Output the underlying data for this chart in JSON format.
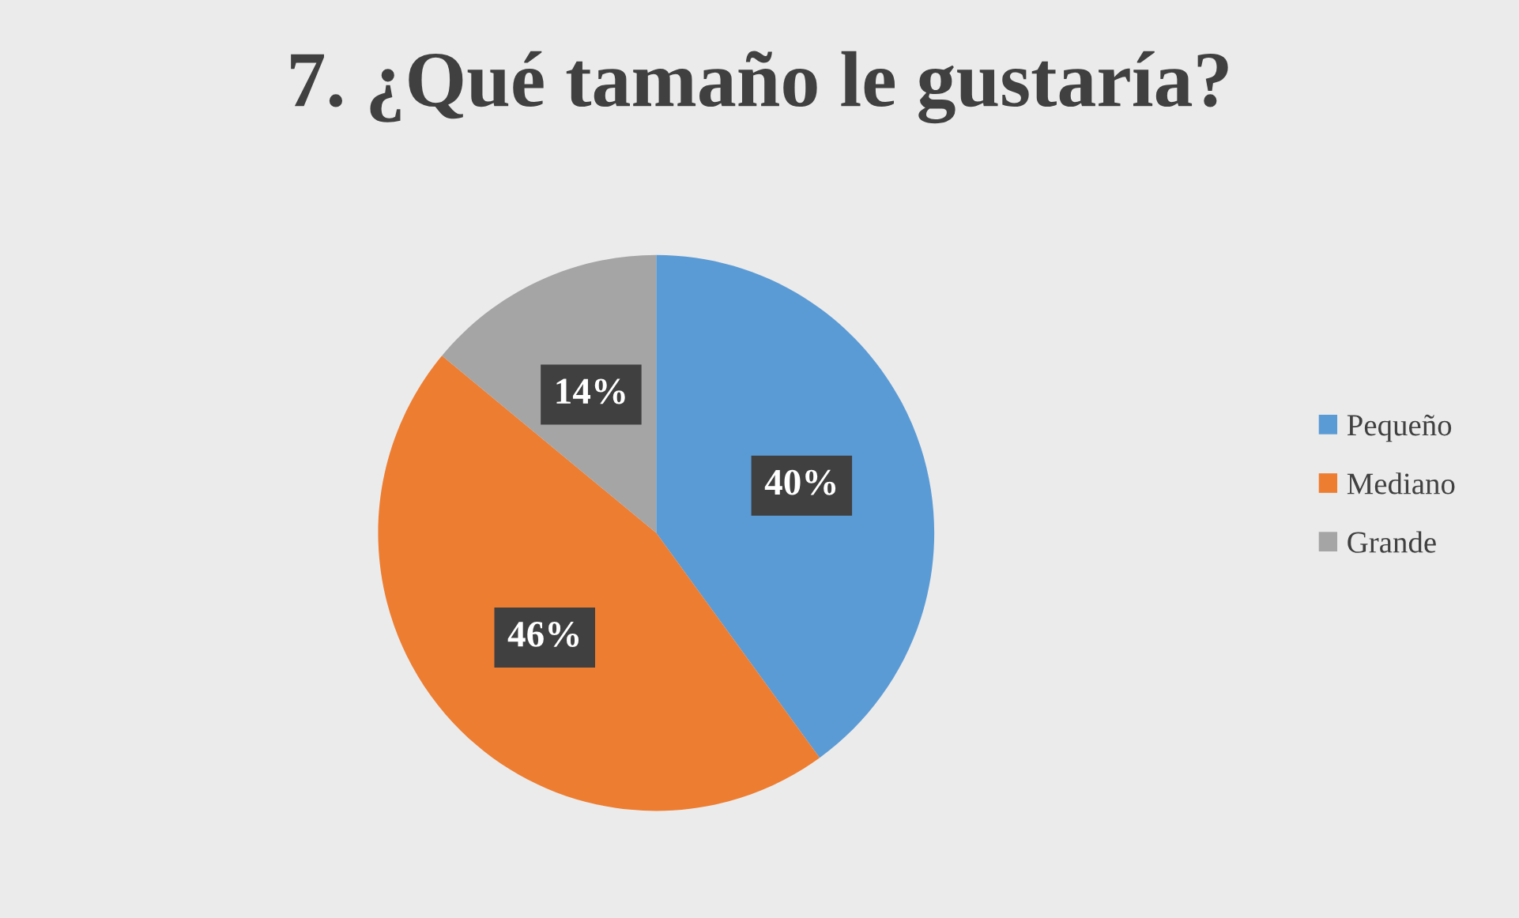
{
  "chart_data": {
    "type": "pie",
    "title": "7. ¿Qué tamaño le gustaría?",
    "categories": [
      "Pequeño",
      "Mediano",
      "Grande"
    ],
    "values": [
      40,
      46,
      14
    ],
    "value_labels": [
      "40%",
      "46%",
      "14%"
    ],
    "colors": [
      "#5b9bd5",
      "#ed7d31",
      "#a5a5a5"
    ],
    "legend": "right"
  }
}
